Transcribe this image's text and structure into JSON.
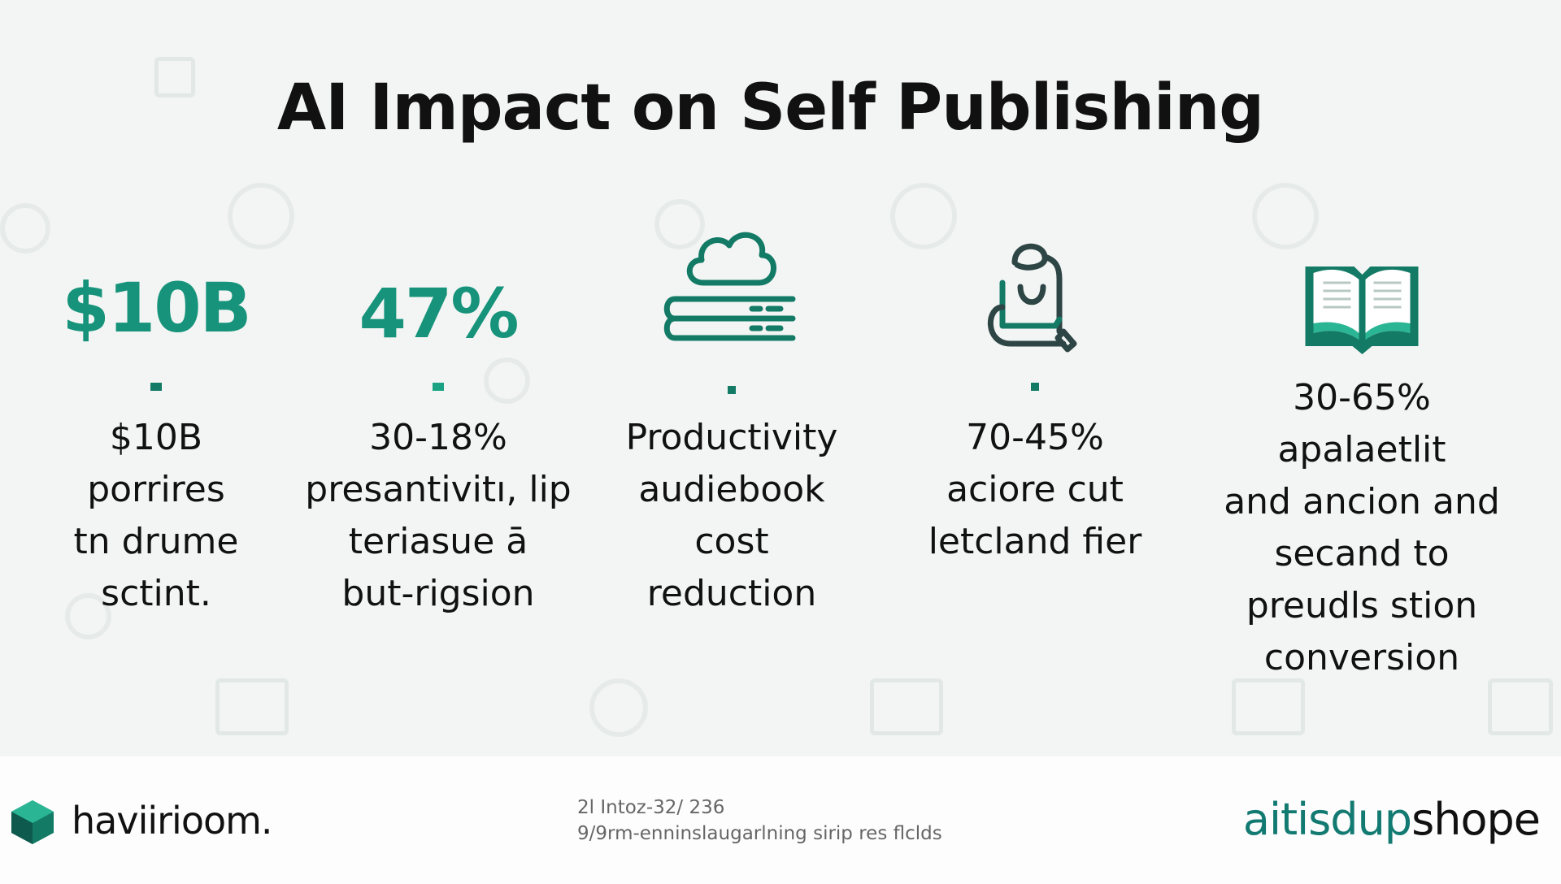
{
  "title": "AI Impact on Self Publishing",
  "colors": {
    "accent": "#16937a",
    "dark_teal": "#137a66",
    "text": "#111111",
    "background": "#f3f5f4"
  },
  "columns": [
    {
      "stat": "$10B",
      "icon": null,
      "lines": [
        "$10B",
        "porrires",
        "tn drume",
        "sctint."
      ]
    },
    {
      "stat": "47%",
      "icon": null,
      "lines": [
        "30-18%",
        "presantivitı, lip",
        "teriasue ā",
        "but-rigsion"
      ]
    },
    {
      "stat": null,
      "icon": "cloud-books-icon",
      "lines": [
        "Productivity",
        "audiebook",
        "cost",
        "reduction"
      ]
    },
    {
      "stat": null,
      "icon": "person-laptop-icon",
      "lines": [
        "70-45%",
        "aciore cut",
        "letcland fier"
      ]
    },
    {
      "stat": null,
      "icon": "open-book-icon",
      "lines": [
        "30-65%",
        "apalaetlit",
        "and ancion and",
        "secand to",
        "preudls stion",
        "conversion"
      ]
    }
  ],
  "footer": {
    "left_brand": "haviirioom.",
    "middle_line1": "2l Intoz-32/ 236",
    "middle_line2": "9/9rm-enninslaugarlning sirip res flclds",
    "right_brand_accent": "aitisdup",
    "right_brand_rest": "shope"
  }
}
